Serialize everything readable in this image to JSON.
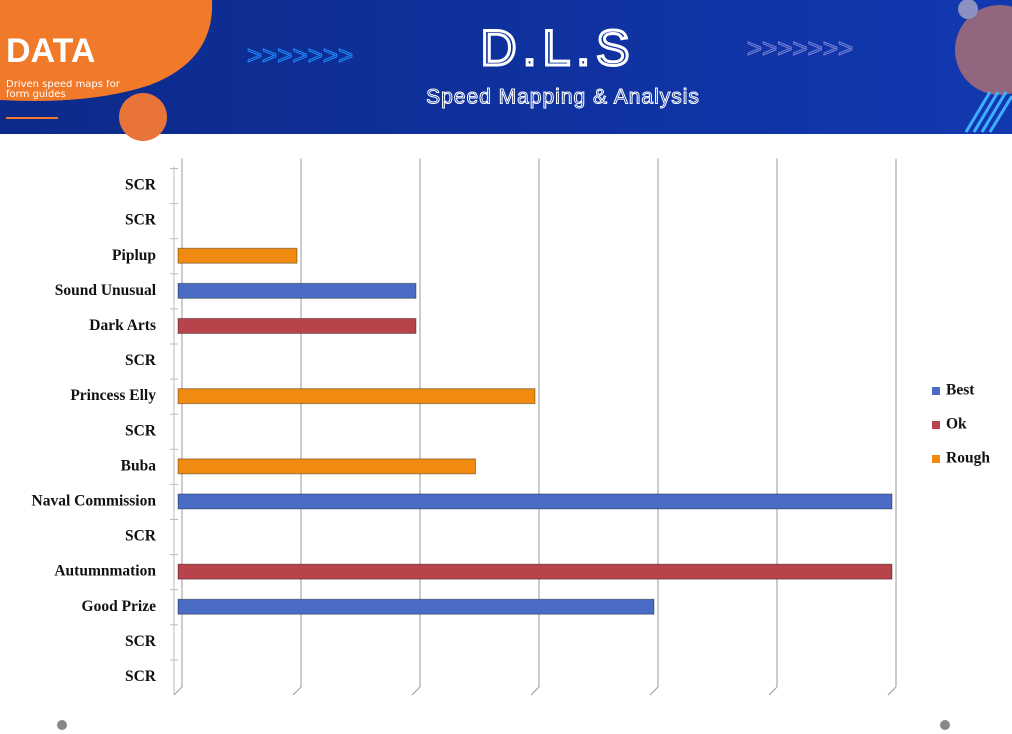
{
  "header": {
    "brand": "DATA",
    "tagline": "Driven speed maps for form guides",
    "title": "D.L.S",
    "subtitle": "Speed Mapping & Analysis"
  },
  "chart_data": {
    "type": "hbar",
    "categories": [
      "SCR",
      "SCR",
      "Piplup",
      "Sound Unusual",
      "Dark Arts",
      "SCR",
      "Princess Elly",
      "SCR",
      "Buba",
      "Naval Commission",
      "SCR",
      "Autumnmation",
      "Good Prize",
      "SCR",
      "SCR"
    ],
    "series": [
      {
        "name": "Best",
        "color": "#4a6cc4",
        "values": [
          null,
          null,
          null,
          2,
          null,
          null,
          null,
          null,
          null,
          6,
          null,
          null,
          4,
          null,
          null
        ]
      },
      {
        "name": "Ok",
        "color": "#b8434a",
        "values": [
          null,
          null,
          null,
          null,
          2,
          null,
          null,
          null,
          null,
          null,
          null,
          6,
          null,
          null,
          null
        ]
      },
      {
        "name": "Rough",
        "color": "#f08a10",
        "values": [
          null,
          null,
          1,
          null,
          null,
          null,
          3,
          null,
          2.5,
          null,
          null,
          null,
          null,
          null,
          null
        ]
      }
    ],
    "xlim": [
      0,
      6
    ],
    "xticks": [
      0,
      1,
      2,
      3,
      4,
      5,
      6
    ],
    "grid": true,
    "legend": "right"
  }
}
